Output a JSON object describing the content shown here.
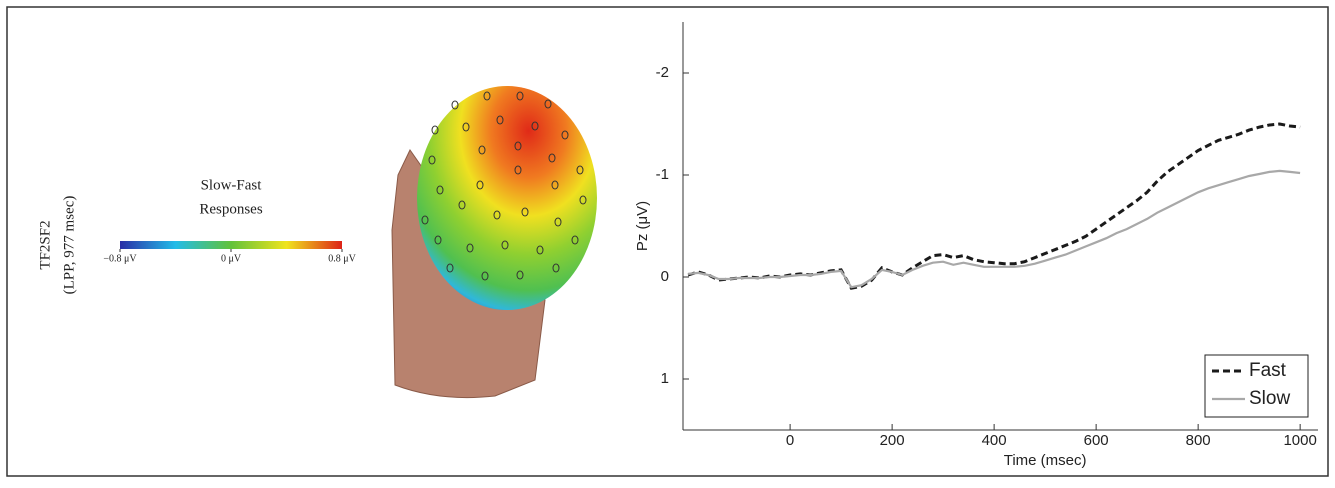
{
  "topomap": {
    "row_label": "TF2SF2",
    "row_sublabel": "(LPP, 977 msec)",
    "title_lines": [
      "Slow-Fast",
      "Responses"
    ],
    "colorbar": {
      "lim": [
        -0.8,
        0.8
      ],
      "colors": [
        "#2a2ea6",
        "#22bce8",
        "#62c23a",
        "#f0e41c",
        "#dd2218"
      ],
      "ticks": [
        {
          "value": -0.8,
          "label": "−0.8 μV"
        },
        {
          "value": 0,
          "label": "0 μV"
        },
        {
          "value": 0.8,
          "label": "0.8 μV"
        }
      ]
    }
  },
  "chart_data": {
    "type": "line",
    "xlabel": "Time (msec)",
    "ylabel": "Pz (μV)",
    "x": [
      -200,
      -180,
      -160,
      -140,
      -120,
      -100,
      -80,
      -60,
      -40,
      -20,
      0,
      20,
      40,
      60,
      80,
      100,
      120,
      140,
      160,
      180,
      200,
      220,
      240,
      260,
      280,
      300,
      320,
      340,
      360,
      380,
      400,
      420,
      440,
      460,
      480,
      500,
      520,
      540,
      560,
      580,
      600,
      620,
      640,
      660,
      680,
      700,
      720,
      740,
      760,
      780,
      800,
      820,
      840,
      860,
      880,
      900,
      920,
      940,
      960,
      980,
      1000
    ],
    "series": [
      {
        "name": "Fast",
        "color": "#1a1a1a",
        "line_style": "dashed",
        "values": [
          -0.02,
          -0.05,
          -0.02,
          0.03,
          0.02,
          0.01,
          0,
          0.01,
          -0.01,
          0,
          -0.02,
          -0.03,
          -0.02,
          -0.04,
          -0.06,
          -0.07,
          0.11,
          0.09,
          0.03,
          -0.09,
          -0.05,
          -0.02,
          -0.09,
          -0.15,
          -0.21,
          -0.22,
          -0.19,
          -0.21,
          -0.17,
          -0.15,
          -0.14,
          -0.13,
          -0.13,
          -0.15,
          -0.19,
          -0.23,
          -0.27,
          -0.31,
          -0.35,
          -0.4,
          -0.47,
          -0.54,
          -0.61,
          -0.68,
          -0.75,
          -0.83,
          -0.94,
          -1.03,
          -1.1,
          -1.17,
          -1.24,
          -1.29,
          -1.34,
          -1.37,
          -1.4,
          -1.44,
          -1.47,
          -1.49,
          -1.5,
          -1.48,
          -1.47
        ]
      },
      {
        "name": "Slow",
        "color": "#a8a8a8",
        "line_style": "solid",
        "values": [
          -0.03,
          -0.04,
          -0.02,
          0.02,
          0.02,
          0.01,
          0.01,
          0.01,
          0,
          0,
          -0.01,
          -0.02,
          -0.02,
          -0.03,
          -0.05,
          -0.06,
          0.1,
          0.08,
          0.02,
          -0.07,
          -0.05,
          -0.02,
          -0.07,
          -0.11,
          -0.14,
          -0.15,
          -0.12,
          -0.14,
          -0.12,
          -0.1,
          -0.1,
          -0.1,
          -0.1,
          -0.11,
          -0.13,
          -0.16,
          -0.19,
          -0.22,
          -0.26,
          -0.3,
          -0.34,
          -0.38,
          -0.43,
          -0.47,
          -0.52,
          -0.57,
          -0.63,
          -0.68,
          -0.73,
          -0.78,
          -0.83,
          -0.87,
          -0.9,
          -0.93,
          -0.96,
          -0.99,
          -1.01,
          -1.03,
          -1.04,
          -1.03,
          -1.02
        ]
      }
    ],
    "xlim": [
      -210,
      1035
    ],
    "xticks": [
      0,
      200,
      400,
      600,
      800,
      1000
    ],
    "ylim": [
      -2.5,
      1.5
    ],
    "yticks": [
      -2,
      -1,
      0,
      1
    ],
    "y_inverted": true,
    "legend": "lower right"
  }
}
